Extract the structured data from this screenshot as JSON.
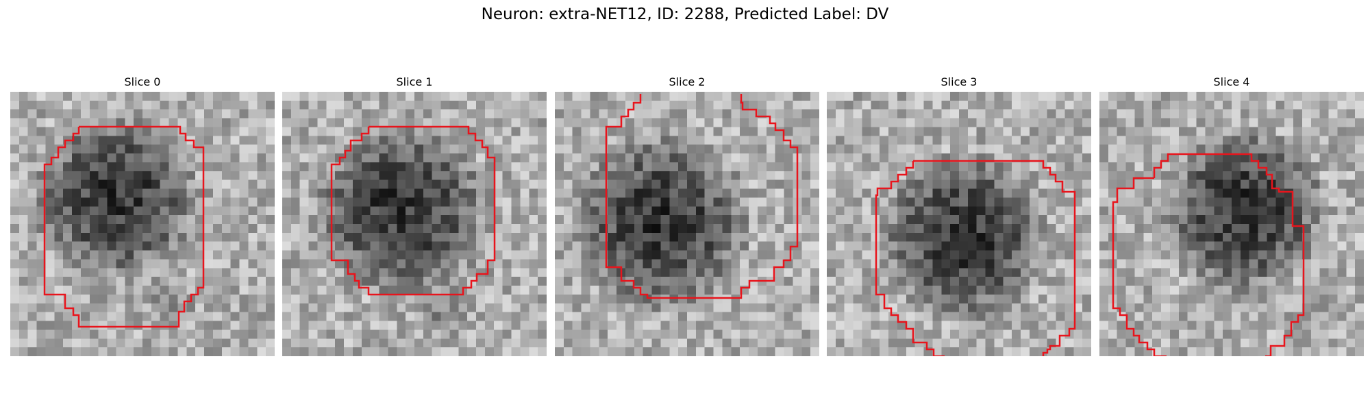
{
  "figure_title": "Neuron: extra-NET12, ID: 2288, Predicted Label: DV",
  "outline_color": "#e8141c",
  "colormap": "gray",
  "panels": [
    {
      "title": "Slice 0"
    },
    {
      "title": "Slice 1"
    },
    {
      "title": "Slice 2"
    },
    {
      "title": "Slice 3"
    },
    {
      "title": "Slice 4"
    }
  ]
}
